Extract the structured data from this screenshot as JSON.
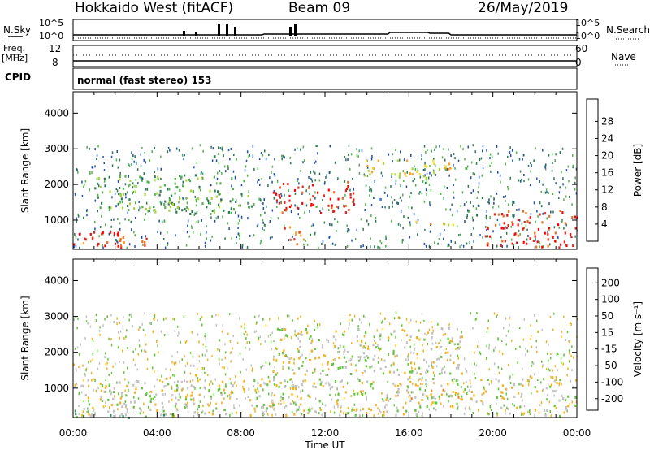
{
  "header": {
    "radar": "Hokkaido West (fitACF)",
    "beam": "Beam 09",
    "date": "26/May/2019"
  },
  "top_panels": {
    "nsky_label": "N.Sky",
    "nsearch_label": "N.Search",
    "nsky_ticks": [
      "10^5",
      "10^0"
    ],
    "nsearch_ticks": [
      "10^5",
      "10^0"
    ],
    "freq_label_1": "Freq.",
    "freq_label_2": "[MHz]",
    "freq_ticks": [
      "12",
      "8"
    ],
    "nave_label": "Nave",
    "nave_ticks": [
      "60",
      "0"
    ],
    "cpid_label": "CPID",
    "cpid_text": "normal (fast stereo) 153"
  },
  "chart_data": [
    {
      "type": "heatmap",
      "name": "power",
      "ylabel": "Slant Range [km]",
      "yticks": [
        "1000",
        "2000",
        "3000",
        "4000"
      ],
      "ylim": [
        180,
        4600
      ],
      "colorbar_label": "Power [dB]",
      "colorbar_ticks": [
        "4",
        "8",
        "12",
        "16",
        "20",
        "24",
        "28"
      ],
      "colorbar_colors": [
        "#0022ff",
        "#2050a8",
        "#2e7a55",
        "#52b34a",
        "#a8d13a",
        "#f5e020",
        "#f6a21c",
        "#f36a1a",
        "#e6241a",
        "#ff0000"
      ],
      "echo_bands": [
        {
          "t": [
            0,
            2.2
          ],
          "r": [
            250,
            700
          ],
          "level": 9
        },
        {
          "t": [
            0,
            3.5
          ],
          "r": [
            250,
            550
          ],
          "level": 7
        },
        {
          "t": [
            1,
            8.5
          ],
          "r": [
            1200,
            2300
          ],
          "level": 3
        },
        {
          "t": [
            9.5,
            13.5
          ],
          "r": [
            1200,
            2100
          ],
          "level": 8
        },
        {
          "t": [
            13.5,
            18
          ],
          "r": [
            2200,
            2700
          ],
          "level": 5
        },
        {
          "t": [
            16,
            18.5
          ],
          "r": [
            850,
            1000
          ],
          "level": 5
        },
        {
          "t": [
            19.5,
            24
          ],
          "r": [
            250,
            1300
          ],
          "level": 8
        },
        {
          "t": [
            10,
            11
          ],
          "r": [
            250,
            900
          ],
          "level": 7
        }
      ]
    },
    {
      "type": "heatmap",
      "name": "velocity",
      "ylabel": "Slant Range [km]",
      "yticks": [
        "1000",
        "2000",
        "3000",
        "4000"
      ],
      "ylim": [
        180,
        4600
      ],
      "colorbar_label": "Velocity [m s⁻¹]",
      "colorbar_ticks": [
        "200",
        "100",
        "50",
        "15",
        "-15",
        "-50",
        "-100",
        "-200"
      ],
      "colorbar_colors": [
        "#1a30c8",
        "#1f6e9e",
        "#2c8a50",
        "#62c53a",
        "#c2c2c2",
        "#f5b21c",
        "#f27f1a",
        "#f04a1a",
        "#ee1a1a"
      ],
      "echo_bands": [
        {
          "t": [
            0,
            24
          ],
          "r": [
            250,
            1300
          ],
          "level": 4
        },
        {
          "t": [
            9.5,
            18.5
          ],
          "r": [
            1400,
            2700
          ],
          "level": 4
        },
        {
          "t": [
            16,
            18.5
          ],
          "r": [
            700,
            1000
          ],
          "level": 5
        },
        {
          "t": [
            0,
            5
          ],
          "r": [
            200,
            400
          ],
          "level": 3
        }
      ]
    }
  ],
  "x_axis": {
    "ticks": [
      "00:00",
      "04:00",
      "08:00",
      "12:00",
      "16:00",
      "20:00",
      "00:00"
    ],
    "label": "Time UT"
  }
}
